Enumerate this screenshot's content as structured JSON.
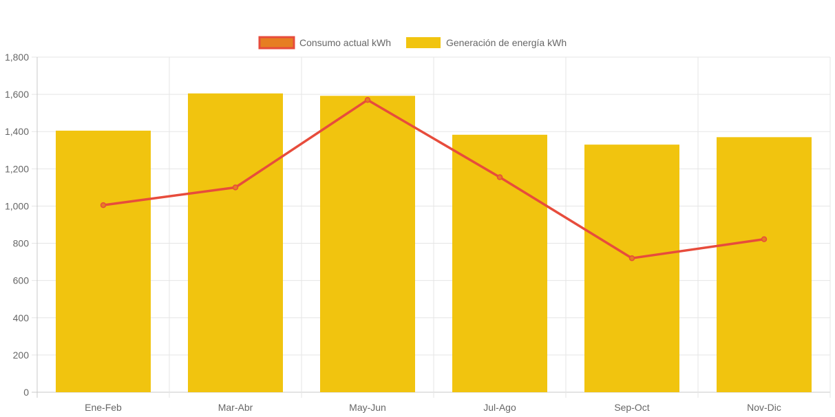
{
  "chart_data": {
    "type": "bar",
    "categories": [
      "Ene-Feb",
      "Mar-Abr",
      "May-Jun",
      "Jul-Ago",
      "Sep-Oct",
      "Nov-Dic"
    ],
    "series": [
      {
        "name": "Consumo actual kWh",
        "type": "line",
        "values": [
          1005,
          1100,
          1570,
          1155,
          720,
          822
        ],
        "color": "#e74c3c",
        "fill_color": "#e67e22"
      },
      {
        "name": "Generación de energía kWh",
        "type": "bar",
        "values": [
          1405,
          1605,
          1592,
          1383,
          1330,
          1370
        ],
        "color": "#f1c40f"
      }
    ],
    "ylim": [
      0,
      1800
    ],
    "yticks": [
      "0",
      "200",
      "400",
      "600",
      "800",
      "1,000",
      "1,200",
      "1,400",
      "1,600",
      "1,800"
    ],
    "grid": true,
    "legend_position": "top-center"
  }
}
